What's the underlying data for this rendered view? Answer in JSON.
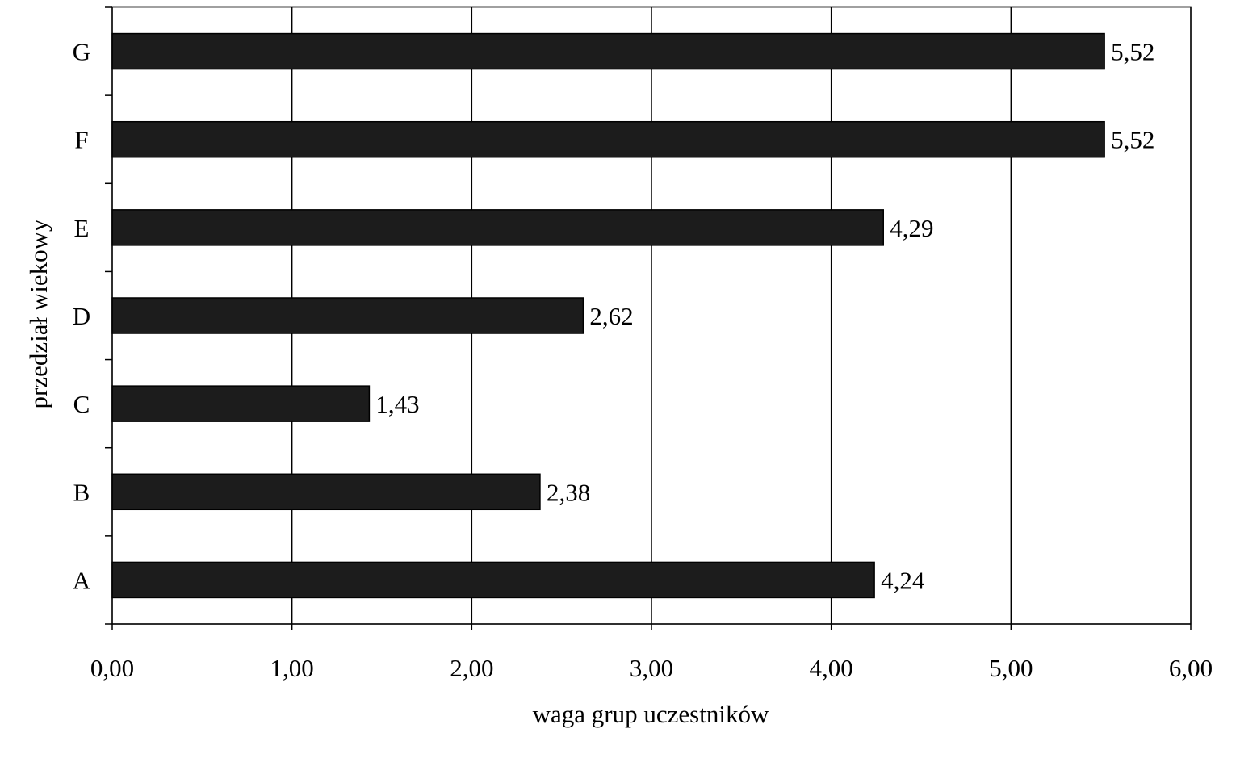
{
  "chart_data": {
    "type": "bar",
    "orientation": "horizontal",
    "categories": [
      "A",
      "B",
      "C",
      "D",
      "E",
      "F",
      "G"
    ],
    "values": [
      4.24,
      2.38,
      1.43,
      2.62,
      4.29,
      5.52,
      5.52
    ],
    "data_labels": [
      "4,24",
      "2,38",
      "1,43",
      "2,62",
      "4,29",
      "5,52",
      "5,52"
    ],
    "xlabel": "waga grup uczestników",
    "ylabel": "przedział wiekowy",
    "xlim": [
      0,
      6
    ],
    "xticks": [
      0,
      1,
      2,
      3,
      4,
      5,
      6
    ],
    "xtick_labels": [
      "0,00",
      "1,00",
      "2,00",
      "3,00",
      "4,00",
      "5,00",
      "6,00"
    ],
    "grid": "vertical",
    "bar_color": "#1c1c1c",
    "grid_color": "#000000"
  }
}
